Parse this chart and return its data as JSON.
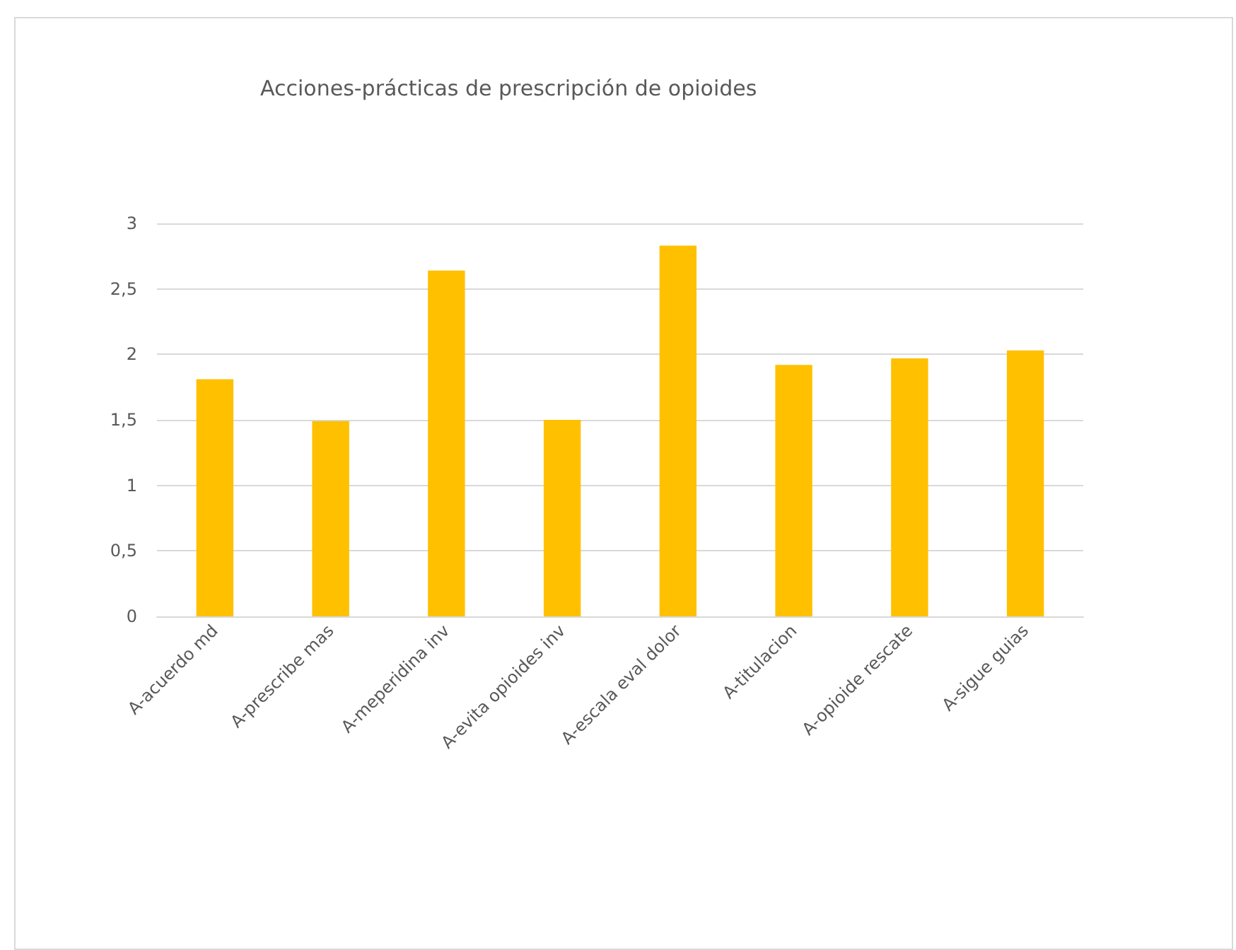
{
  "chart_data": {
    "type": "bar",
    "title": "Acciones-prácticas de prescripción de opioides",
    "categories": [
      "A-acuerdo md",
      "A-prescribe mas",
      "A-meperidina inv",
      "A-evita opioides inv",
      "A-escala eval dolor",
      "A-titulacion",
      "A-opioide rescate",
      "A-sigue guias"
    ],
    "values": [
      1.81,
      1.49,
      2.64,
      1.5,
      2.83,
      1.92,
      1.97,
      2.03
    ],
    "color": "#ffc000",
    "ylim": [
      0,
      3
    ],
    "yticks": [
      0,
      {
        "value": 0.5,
        "label": "0,5"
      },
      1,
      {
        "value": 1.5,
        "label": "1,5"
      },
      2,
      {
        "value": 2.5,
        "label": "2,5"
      },
      3
    ],
    "grid": "y"
  }
}
